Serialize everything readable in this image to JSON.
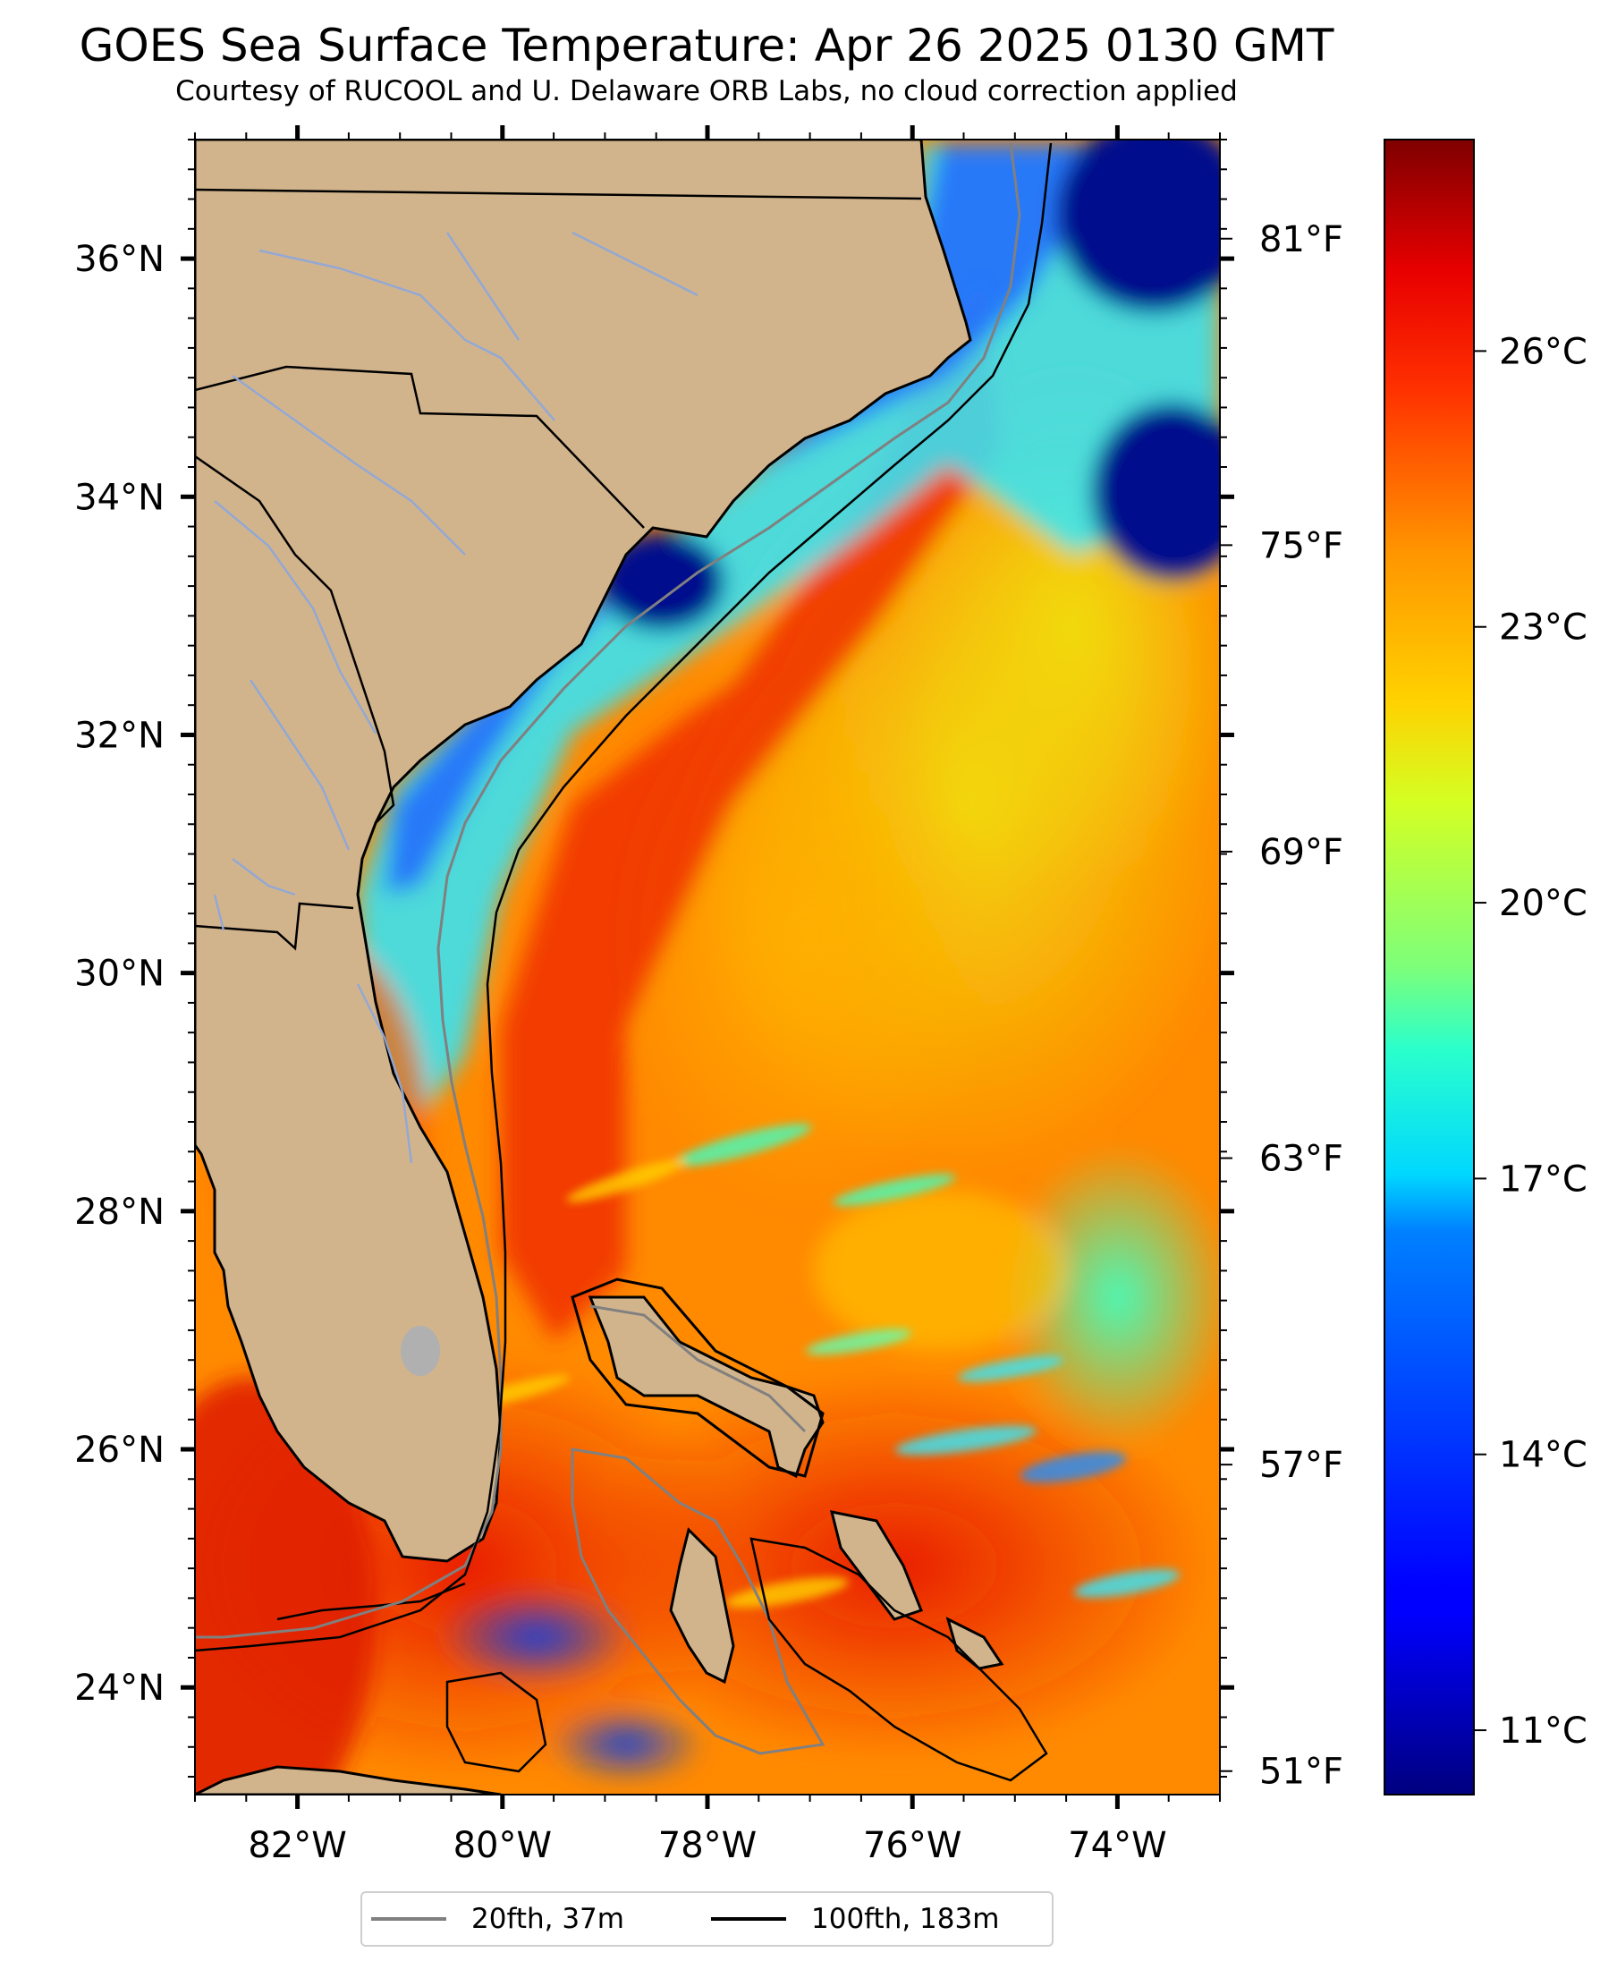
{
  "title": "GOES Sea Surface Temperature: Apr 26 2025 0130 GMT",
  "subtitle": "Courtesy of RUCOOL and U. Delaware ORB Labs, no cloud correction applied",
  "map": {
    "lon_range": [
      -83,
      -73
    ],
    "lat_range": [
      23.1,
      37
    ],
    "lon_ticks": [
      {
        "value": -82,
        "label": "82°W"
      },
      {
        "value": -80,
        "label": "80°W"
      },
      {
        "value": -78,
        "label": "78°W"
      },
      {
        "value": -76,
        "label": "76°W"
      },
      {
        "value": -74,
        "label": "74°W"
      }
    ],
    "lat_ticks": [
      {
        "value": 24,
        "label": "24°N"
      },
      {
        "value": 26,
        "label": "26°N"
      },
      {
        "value": 28,
        "label": "28°N"
      },
      {
        "value": 30,
        "label": "30°N"
      },
      {
        "value": 32,
        "label": "32°N"
      },
      {
        "value": 34,
        "label": "34°N"
      },
      {
        "value": 36,
        "label": "36°N"
      }
    ],
    "land_color": "#d2b48c",
    "water_line_color": "#8fa8d8"
  },
  "fahrenheit_axis": {
    "ticks": [
      {
        "value": 51,
        "label": "51°F"
      },
      {
        "value": 57,
        "label": "57°F"
      },
      {
        "value": 63,
        "label": "63°F"
      },
      {
        "value": 69,
        "label": "69°F"
      },
      {
        "value": 75,
        "label": "75°F"
      },
      {
        "value": 81,
        "label": "81°F"
      }
    ]
  },
  "colorbar": {
    "colormap": "jet",
    "celsius_range": [
      10.3,
      28.3
    ],
    "ticks": [
      {
        "value": 11,
        "label": "11°C"
      },
      {
        "value": 14,
        "label": "14°C"
      },
      {
        "value": 17,
        "label": "17°C"
      },
      {
        "value": 20,
        "label": "20°C"
      },
      {
        "value": 23,
        "label": "23°C"
      },
      {
        "value": 26,
        "label": "26°C"
      }
    ]
  },
  "legend": {
    "items": [
      {
        "label": "20fth, 37m",
        "color": "#808080"
      },
      {
        "label": "100fth, 183m",
        "color": "#000000"
      }
    ]
  }
}
